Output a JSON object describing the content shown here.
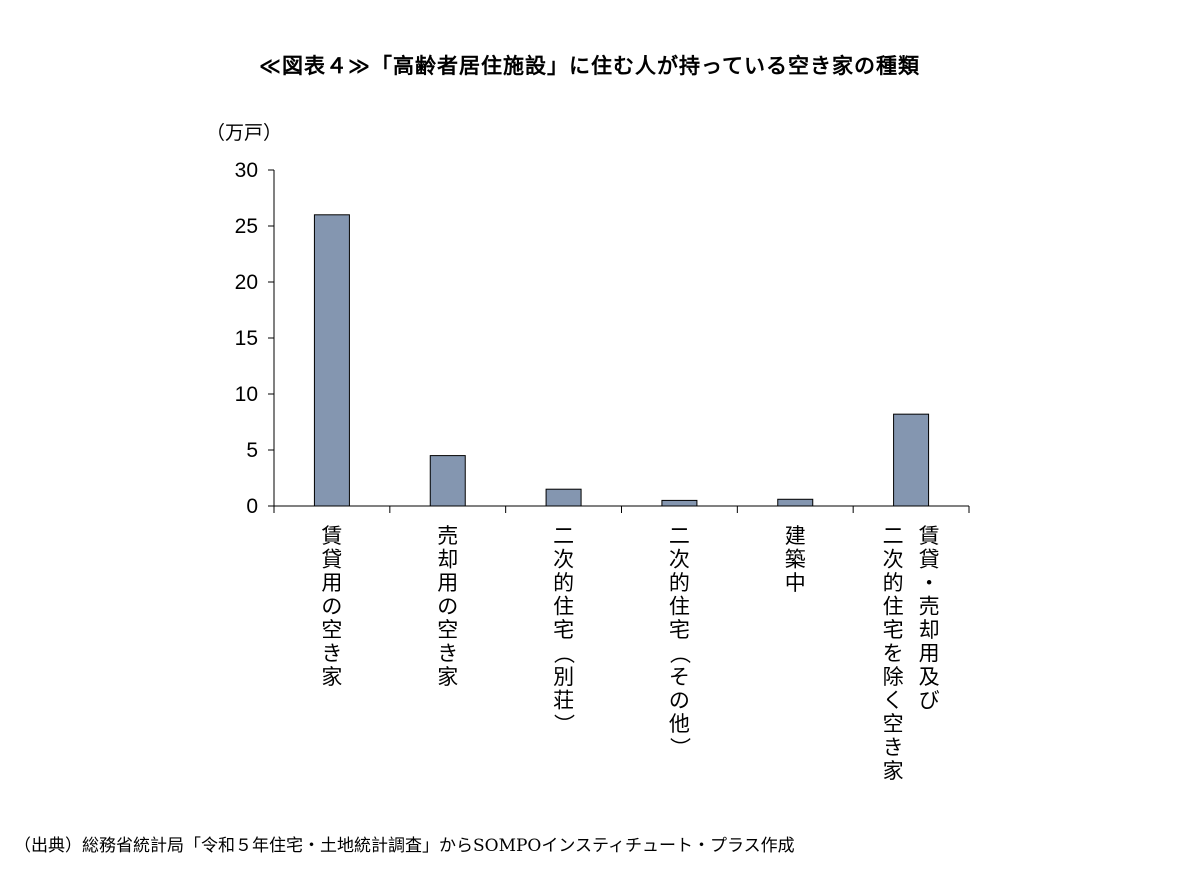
{
  "chart_data": {
    "type": "bar",
    "title": "≪図表４≫「高齢者居住施設」に住む人が持っている空き家の種類",
    "ylabel": "（万戸）",
    "xlabel": "",
    "ylim": [
      0,
      30
    ],
    "yticks": [
      0,
      5,
      10,
      15,
      20,
      25,
      30
    ],
    "categories": [
      [
        "賃貸用の空き家"
      ],
      [
        "売却用の空き家"
      ],
      [
        "二次的住宅（別荘）"
      ],
      [
        "二次的住宅（その他）"
      ],
      [
        "建築中"
      ],
      [
        "賃貸・売却用及び",
        "二次的住宅を除く空き家"
      ]
    ],
    "values": [
      26.0,
      4.5,
      1.5,
      0.5,
      0.6,
      8.2
    ],
    "bar_color": "#8496b0",
    "grid": false,
    "legend": "none"
  },
  "source_note": "（出典）総務省統計局「令和５年住宅・土地統計調査」からSOMPOインスティチュート・プラス作成"
}
